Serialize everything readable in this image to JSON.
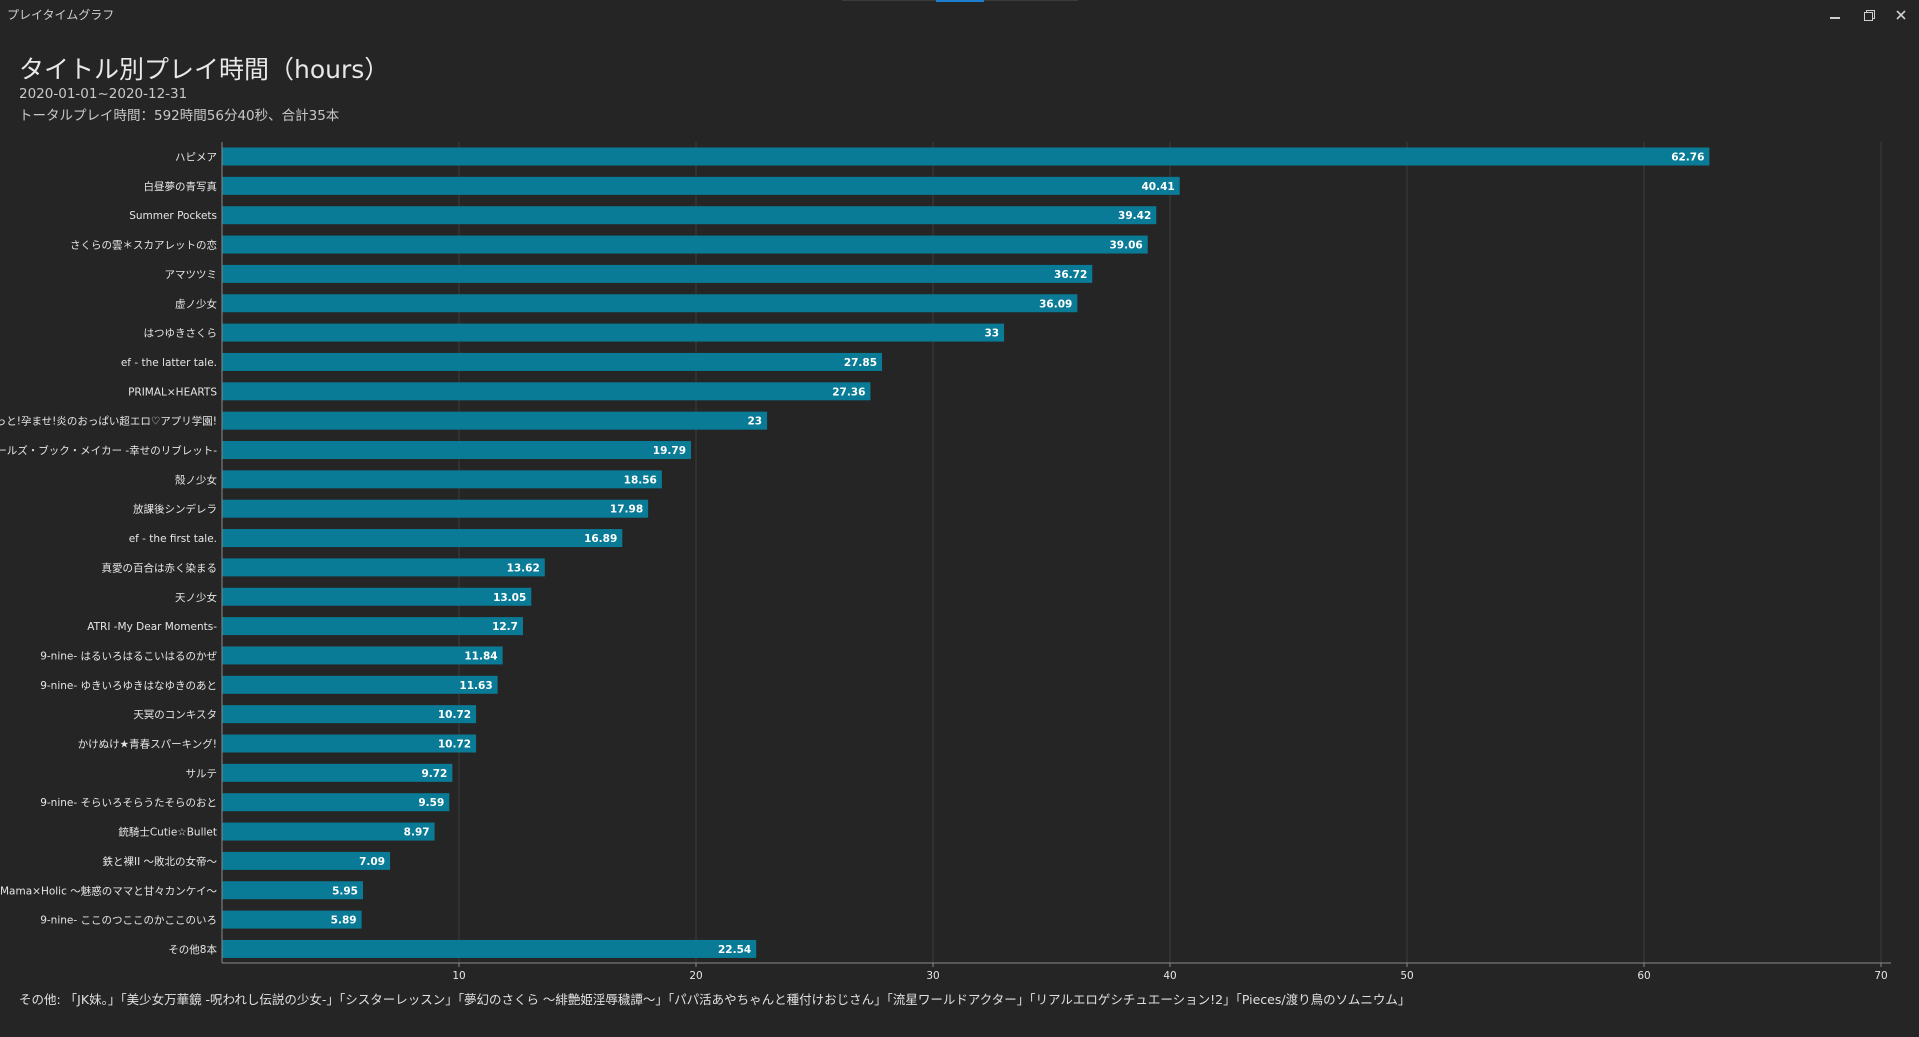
{
  "window": {
    "title": "プレイタイムグラフ"
  },
  "header": {
    "title": "タイトル別プレイ時間（hours）",
    "date_range": "2020-01-01~2020-12-31",
    "total": "トータルプレイ時間：592時間56分40秒、合計35本"
  },
  "colors": {
    "background": "#252525",
    "bar": "#0a7b96",
    "grid": "#3d3d3d",
    "axis": "#8a8a8a",
    "label": "#e6e6e6",
    "value_label": "#ffffff"
  },
  "chart_data": {
    "type": "bar",
    "orientation": "horizontal",
    "title": "タイトル別プレイ時間（hours）",
    "xlim": [
      0,
      70
    ],
    "xticks": [
      10,
      20,
      30,
      40,
      50,
      60,
      70
    ],
    "grid": true,
    "categories": [
      "ハピメア",
      "白昼夢の青写真",
      "Summer Pockets",
      "さくらの雲＊スカアレットの恋",
      "アマツツミ",
      "虚ノ少女",
      "はつゆきさくら",
      "ef - the latter tale.",
      "PRIMAL×HEARTS",
      "もっと!孕ませ!炎のおっぱい超エロ♡アプリ学園!",
      "ガールズ・ブック・メイカー -幸せのリブレット-",
      "殻ノ少女",
      "放課後シンデレラ",
      "ef - the first tale.",
      "真愛の百合は赤く染まる",
      "天ノ少女",
      "ATRI -My Dear Moments-",
      "9-nine- はるいろはるこいはるのかぜ",
      "9-nine- ゆきいろゆきはなゆきのあと",
      "天冥のコンキスタ",
      "かけぬけ★青春スパーキング!",
      "サルテ",
      "9-nine- そらいろそらうたそらのおと",
      "銃騎士Cutie☆Bullet",
      "鉄と裸II ～敗北の女帝～",
      "Mama×Holic ～魅惑のママと甘々カンケイ～",
      "9-nine- ここのつここのかここのいろ",
      "その他8本"
    ],
    "values": [
      62.76,
      40.41,
      39.42,
      39.06,
      36.72,
      36.09,
      33,
      27.85,
      27.36,
      23,
      19.79,
      18.56,
      17.98,
      16.89,
      13.62,
      13.05,
      12.7,
      11.84,
      11.63,
      10.72,
      10.72,
      9.72,
      9.59,
      8.97,
      7.09,
      5.95,
      5.89,
      22.54
    ]
  },
  "footer": {
    "others": "その他: 「JK妹。」「美少女万華鏡 -呪われし伝説の少女-」「シスターレッスン」「夢幻のさくら ～緋艶姫淫辱穢譚～」「パパ活あやちゃんと種付けおじさん」「流星ワールドアクター」「リアルエロゲシチュエーション!2」「Pieces/渡り鳥のソムニウム」"
  }
}
